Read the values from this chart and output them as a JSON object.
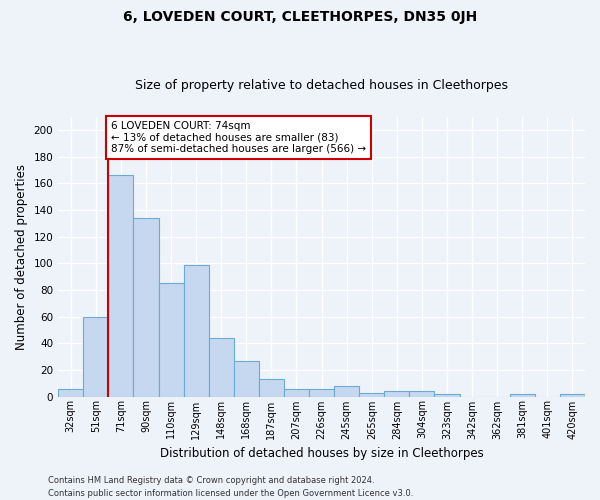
{
  "title": "6, LOVEDEN COURT, CLEETHORPES, DN35 0JH",
  "subtitle": "Size of property relative to detached houses in Cleethorpes",
  "xlabel": "Distribution of detached houses by size in Cleethorpes",
  "ylabel": "Number of detached properties",
  "footnote1": "Contains HM Land Registry data © Crown copyright and database right 2024.",
  "footnote2": "Contains public sector information licensed under the Open Government Licence v3.0.",
  "categories": [
    "32sqm",
    "51sqm",
    "71sqm",
    "90sqm",
    "110sqm",
    "129sqm",
    "148sqm",
    "168sqm",
    "187sqm",
    "207sqm",
    "226sqm",
    "245sqm",
    "265sqm",
    "284sqm",
    "304sqm",
    "323sqm",
    "342sqm",
    "362sqm",
    "381sqm",
    "401sqm",
    "420sqm"
  ],
  "values": [
    6,
    60,
    166,
    134,
    85,
    99,
    44,
    27,
    13,
    6,
    6,
    8,
    3,
    4,
    4,
    2,
    0,
    0,
    2,
    0,
    2
  ],
  "bar_color": "#c5d8f0",
  "bar_edge_color": "#6aaad4",
  "highlight_index": 2,
  "highlight_line_color": "#cc0000",
  "ylim": [
    0,
    210
  ],
  "yticks": [
    0,
    20,
    40,
    60,
    80,
    100,
    120,
    140,
    160,
    180,
    200
  ],
  "annotation_text": "6 LOVEDEN COURT: 74sqm\n← 13% of detached houses are smaller (83)\n87% of semi-detached houses are larger (566) →",
  "annotation_box_color": "#ffffff",
  "annotation_box_edge_color": "#cc0000",
  "background_color": "#eef2f9",
  "plot_background": "#eef2f9",
  "grid_color": "#ffffff",
  "title_fontsize": 10,
  "subtitle_fontsize": 9,
  "axis_label_fontsize": 8.5,
  "tick_fontsize": 7,
  "annotation_fontsize": 7.5,
  "footnote_fontsize": 6
}
